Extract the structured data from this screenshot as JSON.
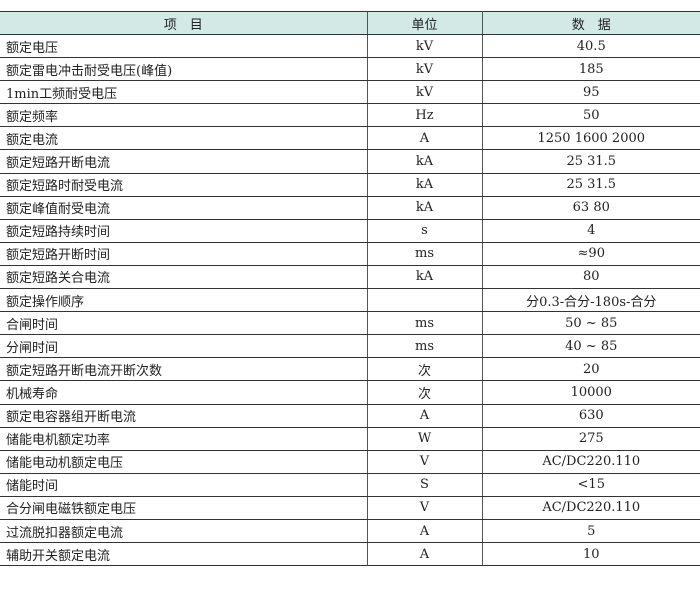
{
  "header": {
    "item": "项　目",
    "unit": "单位",
    "data": "数　据"
  },
  "rows": [
    {
      "item": "额定电压",
      "unit": "kV",
      "value": "40.5"
    },
    {
      "item": "额定雷电冲击耐受电压(峰值)",
      "unit": "kV",
      "value": "185"
    },
    {
      "item": "1min工频耐受电压",
      "unit": "kV",
      "value": "95"
    },
    {
      "item": "额定频率",
      "unit": "Hz",
      "value": "50"
    },
    {
      "item": "额定电流",
      "unit": "A",
      "value": "1250  1600  2000"
    },
    {
      "item": "额定短路开断电流",
      "unit": "kA",
      "value": "25  31.5"
    },
    {
      "item": "额定短路时耐受电流",
      "unit": "kA",
      "value": "25  31.5"
    },
    {
      "item": "额定峰值耐受电流",
      "unit": "kA",
      "value": "63  80"
    },
    {
      "item": "额定短路持续时间",
      "unit": "s",
      "value": "4"
    },
    {
      "item": "额定短路开断时间",
      "unit": "ms",
      "value": "≈90"
    },
    {
      "item": "额定短路关合电流",
      "unit": "kA",
      "value": "80"
    },
    {
      "item": "额定操作顺序",
      "unit": "",
      "value": "分0.3-合分-180s-合分"
    },
    {
      "item": "合闸时间",
      "unit": "ms",
      "value": "50 ~ 85"
    },
    {
      "item": "分闸时间",
      "unit": "ms",
      "value": "40 ~ 85"
    },
    {
      "item": "额定短路开断电流开断次数",
      "unit": "次",
      "value": "20"
    },
    {
      "item": "机械寿命",
      "unit": "次",
      "value": "10000"
    },
    {
      "item": "额定电容器组开断电流",
      "unit": "A",
      "value": "630"
    },
    {
      "item": "储能电机额定功率",
      "unit": "W",
      "value": "275"
    },
    {
      "item": "储能电动机额定电压",
      "unit": "V",
      "value": "AC/DC220.110"
    },
    {
      "item": "储能时间",
      "unit": "S",
      "value": "<15"
    },
    {
      "item": "合分闸电磁铁额定电压",
      "unit": "V",
      "value": "AC/DC220.110"
    },
    {
      "item": "过流脱扣器额定电流",
      "unit": "A",
      "value": "5"
    },
    {
      "item": "辅助开关额定电流",
      "unit": "A",
      "value": "10"
    }
  ]
}
